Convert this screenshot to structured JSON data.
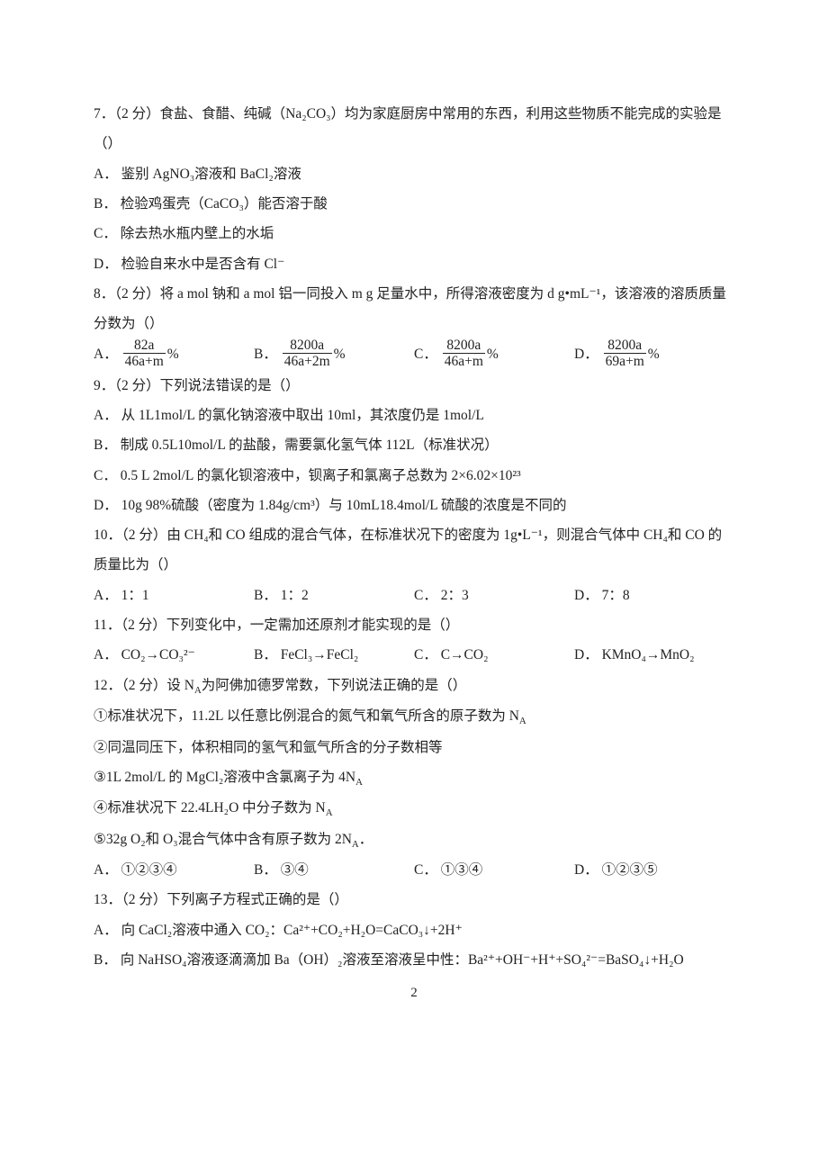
{
  "page_number": "2",
  "q7": {
    "stem": "7．（2 分）食盐、食醋、纯碱（Na₂CO₃）均为家庭厨房中常用的东西，利用这些物质不能完成的实验是（）",
    "A": "A． 鉴别 AgNO₃溶液和 BaCl₂溶液",
    "B": "B． 检验鸡蛋壳（CaCO₃）能否溶于酸",
    "C": "C． 除去热水瓶内壁上的水垢",
    "D": "D． 检验自来水中是否含有 Cl⁻"
  },
  "q8": {
    "stem": "8．（2 分）将 a mol 钠和 a mol 铝一同投入 m g 足量水中，所得溶液密度为 d g•mL⁻¹，该溶液的溶质质量分数为（）",
    "A_label": "A．",
    "A_num": "82a",
    "A_den": "46a+m",
    "A_suf": "%",
    "B_label": "B．",
    "B_num": "8200a",
    "B_den": "46a+2m",
    "B_suf": "%",
    "C_label": "C．",
    "C_num": "8200a",
    "C_den": "46a+m",
    "C_suf": "%",
    "D_label": "D．",
    "D_num": "8200a",
    "D_den": "69a+m",
    "D_suf": "%"
  },
  "q9": {
    "stem": "9．（2 分）下列说法错误的是（）",
    "A": "A． 从 1L1mol/L 的氯化钠溶液中取出 10ml，其浓度仍是 1mol/L",
    "B": "B． 制成 0.5L10mol/L 的盐酸，需要氯化氢气体 112L（标准状况）",
    "C": "C． 0.5 L 2mol/L 的氯化钡溶液中，钡离子和氯离子总数为 2×6.02×10²³",
    "D": "D． 10g 98%硫酸（密度为 1.84g/cm³）与 10mL18.4mol/L 硫酸的浓度是不同的"
  },
  "q10": {
    "stem": "10．（2 分）由 CH₄和 CO 组成的混合气体，在标准状况下的密度为 1g•L⁻¹，则混合气体中 CH₄和 CO 的质量比为（）",
    "A": "A． 1：1",
    "B": "B． 1：2",
    "C": "C． 2：3",
    "D": "D． 7：8"
  },
  "q11": {
    "stem": "11．（2 分）下列变化中，一定需加还原剂才能实现的是（）",
    "A": "A． CO₂→CO₃²⁻",
    "B": "B． FeCl₃→FeCl₂",
    "C": "C． C→CO₂",
    "D": "D． KMnO₄→MnO₂"
  },
  "q12": {
    "stem1": "12．（2 分）设 N",
    "stem1_sub": "A",
    "stem1_tail": "为阿佛加德罗常数，下列说法正确的是（）",
    "l1a": "①标准状况下，11.2L 以任意比例混合的氮气和氧气所含的原子数为 N",
    "l1b": "A",
    "l2": "②同温同压下，体积相同的氢气和氩气所含的分子数相等",
    "l3a": "③1L 2mol/L 的 MgCl₂溶液中含氯离子为 4N",
    "l3b": "A",
    "l4a": "④标准状况下 22.4LH₂O 中分子数为 N",
    "l4b": "A",
    "l5a": "⑤32g O₂和 O₃混合气体中含有原子数为 2N",
    "l5b": "A",
    "l5c": "．",
    "A": "A． ①②③④",
    "B": "B． ③④",
    "C": "C． ①③④",
    "D": "D． ①②③⑤"
  },
  "q13": {
    "stem": "13．（2 分）下列离子方程式正确的是（）",
    "A": "A． 向 CaCl₂溶液中通入 CO₂：Ca²⁺+CO₂+H₂O=CaCO₃↓+2H⁺",
    "B": "B． 向 NaHSO₄溶液逐滴滴加 Ba（OH）₂溶液至溶液呈中性：Ba²⁺+OH⁻+H⁺+SO₄²⁻=BaSO₄↓+H₂O"
  }
}
